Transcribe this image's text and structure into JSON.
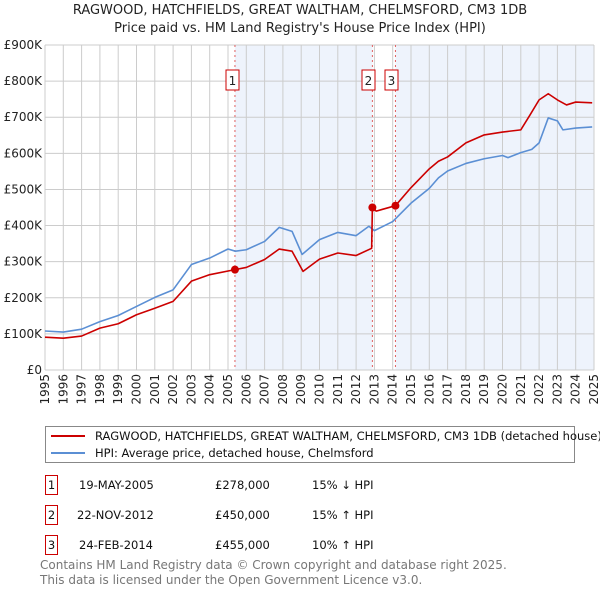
{
  "chart_data": {
    "type": "line",
    "title": "RAGWOOD, HATCHFIELDS, GREAT WALTHAM, CHELMSFORD, CM3 1DB",
    "subtitle": "Price paid vs. HM Land Registry's House Price Index (HPI)",
    "xlim": [
      1995,
      2025
    ],
    "ylim": [
      0,
      900000
    ],
    "x_ticks": [
      "1995",
      "1996",
      "1997",
      "1998",
      "1999",
      "2000",
      "2001",
      "2002",
      "2003",
      "2004",
      "2005",
      "2006",
      "2007",
      "2008",
      "2009",
      "2010",
      "2011",
      "2012",
      "2013",
      "2014",
      "2015",
      "2016",
      "2017",
      "2018",
      "2019",
      "2020",
      "2021",
      "2022",
      "2023",
      "2024",
      "2025"
    ],
    "y_ticks": [
      {
        "v": 0,
        "label": "£0"
      },
      {
        "v": 100000,
        "label": "£100K"
      },
      {
        "v": 200000,
        "label": "£200K"
      },
      {
        "v": 300000,
        "label": "£300K"
      },
      {
        "v": 400000,
        "label": "£400K"
      },
      {
        "v": 500000,
        "label": "£500K"
      },
      {
        "v": 600000,
        "label": "£600K"
      },
      {
        "v": 700000,
        "label": "£700K"
      },
      {
        "v": 800000,
        "label": "£800K"
      },
      {
        "v": 900000,
        "label": "£900K"
      }
    ],
    "grid": true,
    "series": [
      {
        "name": "RAGWOOD, HATCHFIELDS, GREAT WALTHAM, CHELMSFORD, CM3 1DB (detached house)",
        "color": "#cc0000",
        "points": [
          [
            1995,
            91000
          ],
          [
            1996,
            88000
          ],
          [
            1997,
            94000
          ],
          [
            1998,
            116000
          ],
          [
            1999,
            128000
          ],
          [
            2000,
            153000
          ],
          [
            2001,
            171000
          ],
          [
            2002,
            190000
          ],
          [
            2003,
            246000
          ],
          [
            2004,
            264000
          ],
          [
            2005.38,
            278000
          ],
          [
            2006,
            284000
          ],
          [
            2007,
            306000
          ],
          [
            2007.8,
            335000
          ],
          [
            2008.5,
            329000
          ],
          [
            2009.1,
            273000
          ],
          [
            2010,
            307000
          ],
          [
            2011,
            324000
          ],
          [
            2012,
            317000
          ],
          [
            2012.85,
            337000
          ],
          [
            2012.89,
            450000
          ],
          [
            2013.1,
            440000
          ],
          [
            2014.15,
            455000
          ],
          [
            2015,
            505000
          ],
          [
            2016,
            557000
          ],
          [
            2016.5,
            578000
          ],
          [
            2017,
            590000
          ],
          [
            2018,
            629000
          ],
          [
            2019,
            651000
          ],
          [
            2020,
            659000
          ],
          [
            2021,
            665000
          ],
          [
            2021.5,
            706000
          ],
          [
            2022,
            748000
          ],
          [
            2022.5,
            765000
          ],
          [
            2023,
            748000
          ],
          [
            2023.5,
            734000
          ],
          [
            2024,
            742000
          ],
          [
            2024.9,
            740000
          ]
        ]
      },
      {
        "name": "HPI: Average price, detached house, Chelmsford",
        "color": "#5b8fd4",
        "points": [
          [
            1995,
            108000
          ],
          [
            1996,
            105000
          ],
          [
            1997,
            113000
          ],
          [
            1998,
            134000
          ],
          [
            1999,
            151000
          ],
          [
            2000,
            176000
          ],
          [
            2001,
            201000
          ],
          [
            2002,
            222000
          ],
          [
            2003,
            292000
          ],
          [
            2004,
            310000
          ],
          [
            2005,
            335000
          ],
          [
            2005.4,
            329000
          ],
          [
            2006,
            333000
          ],
          [
            2007,
            356000
          ],
          [
            2007.8,
            395000
          ],
          [
            2008.5,
            384000
          ],
          [
            2009.05,
            320000
          ],
          [
            2010,
            361000
          ],
          [
            2011,
            381000
          ],
          [
            2012,
            372000
          ],
          [
            2012.7,
            398000
          ],
          [
            2013,
            386000
          ],
          [
            2014,
            411000
          ],
          [
            2015,
            462000
          ],
          [
            2016,
            503000
          ],
          [
            2016.5,
            532000
          ],
          [
            2017,
            551000
          ],
          [
            2018,
            572000
          ],
          [
            2019,
            585000
          ],
          [
            2020,
            594000
          ],
          [
            2020.3,
            588000
          ],
          [
            2021,
            602000
          ],
          [
            2021.6,
            611000
          ],
          [
            2022,
            629000
          ],
          [
            2022.5,
            698000
          ],
          [
            2023,
            690000
          ],
          [
            2023.3,
            665000
          ],
          [
            2024,
            670000
          ],
          [
            2024.9,
            673000
          ]
        ]
      }
    ],
    "sales": [
      {
        "id": "1",
        "x": 2005.38,
        "value": 278000
      },
      {
        "id": "2",
        "x": 2012.89,
        "value": 450000
      },
      {
        "id": "3",
        "x": 2014.15,
        "value": 455000
      }
    ],
    "shaded_ranges": [
      [
        2005.38,
        2012.89
      ],
      [
        2014.15,
        2025
      ]
    ]
  },
  "legend": {
    "property": "RAGWOOD, HATCHFIELDS, GREAT WALTHAM, CHELMSFORD, CM3 1DB (detached house)",
    "hpi": "HPI: Average price, detached house, Chelmsford"
  },
  "transactions": [
    {
      "id": "1",
      "date": "19-MAY-2005",
      "price": "£278,000",
      "hpi": "15% ↓ HPI"
    },
    {
      "id": "2",
      "date": "22-NOV-2012",
      "price": "£450,000",
      "hpi": "15% ↑ HPI"
    },
    {
      "id": "3",
      "date": "24-FEB-2014",
      "price": "£455,000",
      "hpi": "10% ↑ HPI"
    }
  ],
  "footer": {
    "line1": "Contains HM Land Registry data © Crown copyright and database right 2025.",
    "line2": "This data is licensed under the Open Government Licence v3.0."
  },
  "colors": {
    "property": "#cc0000",
    "hpi": "#5b8fd4",
    "shade": "#eef3fc"
  }
}
